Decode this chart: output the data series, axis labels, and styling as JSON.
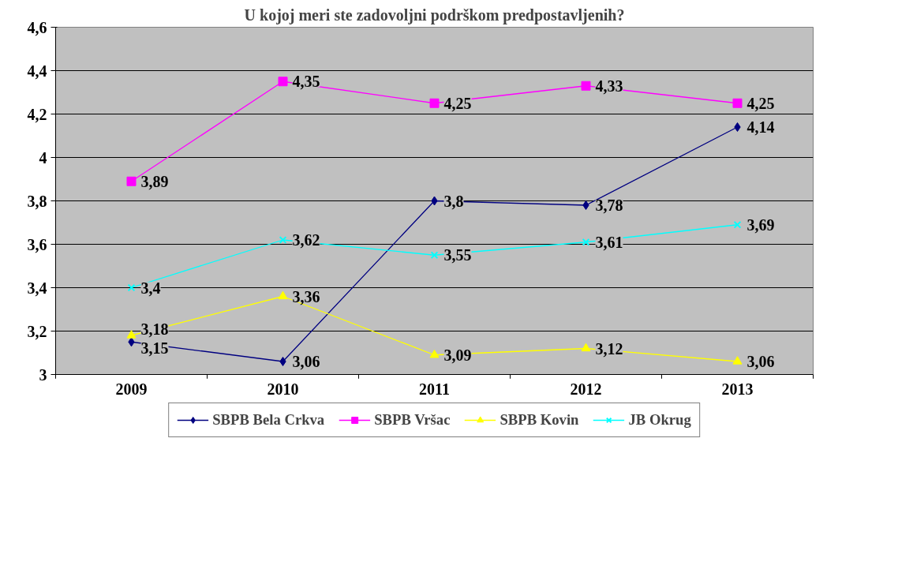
{
  "chart_data": {
    "type": "line",
    "title": "U kojoj meri ste zadovoljni podrškom predpostavljenih?",
    "categories": [
      "2009",
      "2010",
      "2011",
      "2012",
      "2013"
    ],
    "series": [
      {
        "name": "SBPB Bela Crkva",
        "color": "#000080",
        "marker": "diamond",
        "values": [
          3.15,
          3.06,
          3.8,
          3.78,
          4.14
        ],
        "value_labels": [
          "3,15",
          "3,06",
          "3,8",
          "3,78",
          "4,14"
        ]
      },
      {
        "name": "SBPB Vršac",
        "color": "#ff00ff",
        "marker": "square",
        "values": [
          3.89,
          4.35,
          4.25,
          4.33,
          4.25
        ],
        "value_labels": [
          "3,89",
          "4,35",
          "4,25",
          "4,33",
          "4,25"
        ]
      },
      {
        "name": "SBPB Kovin",
        "color": "#ffff00",
        "marker": "triangle",
        "values": [
          3.18,
          3.36,
          3.09,
          3.12,
          3.06
        ],
        "value_labels": [
          "3,18",
          "3,36",
          "3,09",
          "3,12",
          "3,06"
        ]
      },
      {
        "name": "JB Okrug",
        "color": "#00ffff",
        "marker": "cross",
        "values": [
          3.4,
          3.62,
          3.55,
          3.61,
          3.69
        ],
        "value_labels": [
          "3,4",
          "3,62",
          "3,55",
          "3,61",
          "3,69"
        ]
      }
    ],
    "ylim": [
      3,
      4.6
    ],
    "yticks": [
      3,
      {
        "value": 3.2,
        "label": "3,2"
      },
      {
        "value": 3.4,
        "label": "3,4"
      },
      {
        "value": 3.6,
        "label": "3,6"
      },
      {
        "value": 3.8,
        "label": "3,8"
      },
      4,
      {
        "value": 4.2,
        "label": "4,2"
      },
      {
        "value": 4.4,
        "label": "4,4"
      },
      {
        "value": 4.6,
        "label": "4,6"
      }
    ],
    "grid": "y",
    "legend": "bottom",
    "line_style": "solid"
  }
}
